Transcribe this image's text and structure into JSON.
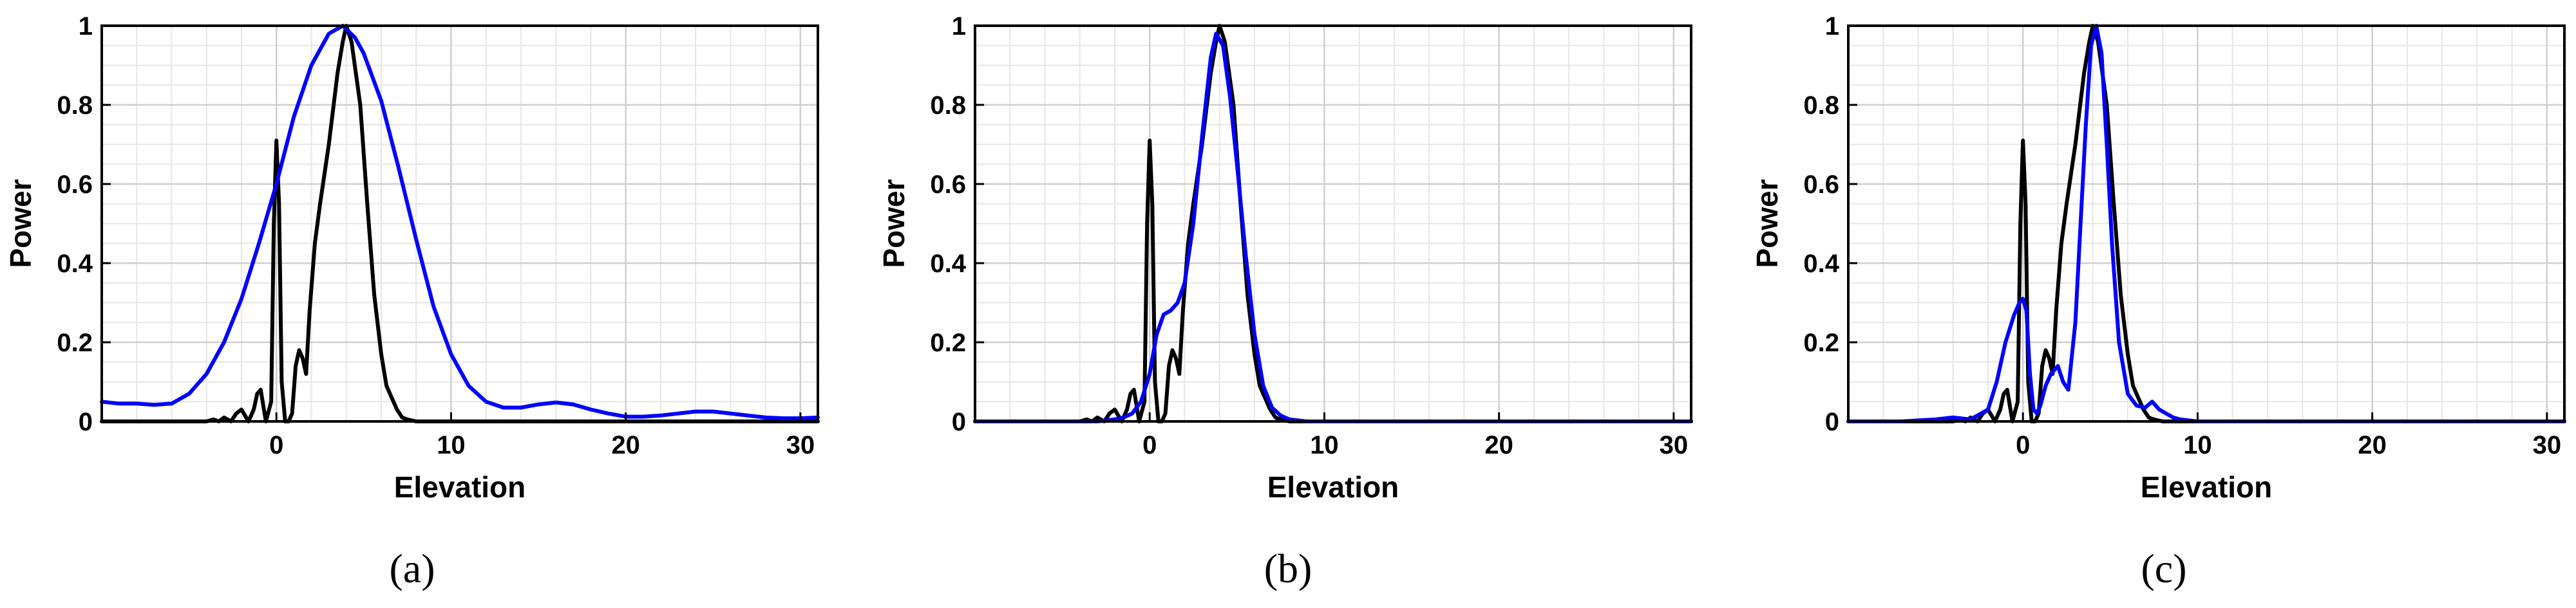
{
  "colors": {
    "reference": "#000000",
    "estimate": "#0000ff",
    "grid": "#cfcfcf",
    "minor_grid": "#e6e6e6"
  },
  "chart_data": [
    {
      "type": "line",
      "caption": "(a)",
      "xlabel": "Elevation",
      "ylabel": "Power",
      "xlim": [
        -10,
        31
      ],
      "ylim": [
        0,
        1
      ],
      "xticks": [
        0,
        10,
        20,
        30
      ],
      "xtick_labels": [
        "0",
        "10",
        "20",
        "30"
      ],
      "yticks": [
        0,
        0.2,
        0.4,
        0.6,
        0.8,
        1
      ],
      "ytick_labels": [
        "0",
        "0.2",
        "0.4",
        "0.6",
        "0.8",
        "1"
      ],
      "grid": true,
      "series": [
        {
          "color": "#000000",
          "x": [
            -10,
            -5,
            -4,
            -3.6,
            -3.3,
            -3,
            -2.6,
            -2.3,
            -2,
            -1.6,
            -1.3,
            -1.1,
            -0.9,
            -0.6,
            -0.3,
            -0.15,
            0,
            0.15,
            0.3,
            0.5,
            0.7,
            0.9,
            1.1,
            1.3,
            1.5,
            1.7,
            1.9,
            2.2,
            2.5,
            3,
            3.5,
            3.8,
            4,
            4.3,
            4.8,
            5.2,
            5.6,
            6,
            6.3,
            6.6,
            6.9,
            7.2,
            7.5,
            8,
            9,
            10,
            12,
            15,
            20,
            25,
            31
          ],
          "y": [
            0,
            0,
            0,
            0.005,
            0,
            0.01,
            0,
            0.02,
            0.03,
            0,
            0.03,
            0.07,
            0.08,
            0,
            0.05,
            0.5,
            0.71,
            0.55,
            0.1,
            0,
            0,
            0.02,
            0.14,
            0.18,
            0.16,
            0.12,
            0.28,
            0.45,
            0.55,
            0.7,
            0.88,
            0.96,
            1,
            0.96,
            0.8,
            0.55,
            0.32,
            0.17,
            0.09,
            0.06,
            0.03,
            0.01,
            0.005,
            0,
            0,
            0,
            0,
            0,
            0,
            0,
            0
          ]
        },
        {
          "color": "#0000ff",
          "x": [
            -10,
            -9,
            -8,
            -7,
            -6,
            -5,
            -4,
            -3,
            -2,
            -1,
            0,
            1,
            2,
            3,
            3.8,
            4.5,
            5,
            6,
            7,
            8,
            9,
            10,
            11,
            12,
            13,
            14,
            15,
            16,
            17,
            18,
            19,
            20,
            21,
            22,
            23,
            24,
            25,
            26,
            27,
            28,
            29,
            30,
            31
          ],
          "y": [
            0.05,
            0.045,
            0.045,
            0.042,
            0.045,
            0.07,
            0.12,
            0.2,
            0.31,
            0.45,
            0.6,
            0.77,
            0.9,
            0.98,
            1,
            0.97,
            0.93,
            0.81,
            0.64,
            0.46,
            0.29,
            0.17,
            0.09,
            0.05,
            0.035,
            0.035,
            0.043,
            0.048,
            0.043,
            0.03,
            0.02,
            0.012,
            0.012,
            0.015,
            0.02,
            0.025,
            0.025,
            0.02,
            0.015,
            0.01,
            0.008,
            0.008,
            0.01
          ]
        }
      ]
    },
    {
      "type": "line",
      "caption": "(b)",
      "xlabel": "Elevation",
      "ylabel": "Power",
      "xlim": [
        -10,
        31
      ],
      "ylim": [
        0,
        1
      ],
      "xticks": [
        0,
        10,
        20,
        30
      ],
      "xtick_labels": [
        "0",
        "10",
        "20",
        "30"
      ],
      "yticks": [
        0,
        0.2,
        0.4,
        0.6,
        0.8,
        1
      ],
      "ytick_labels": [
        "0",
        "0.2",
        "0.4",
        "0.6",
        "0.8",
        "1"
      ],
      "grid": true,
      "series": [
        {
          "color": "#000000",
          "x": [
            -10,
            -5,
            -4,
            -3.6,
            -3.3,
            -3,
            -2.6,
            -2.3,
            -2,
            -1.6,
            -1.3,
            -1.1,
            -0.9,
            -0.6,
            -0.3,
            -0.15,
            0,
            0.15,
            0.3,
            0.5,
            0.7,
            0.9,
            1.1,
            1.3,
            1.5,
            1.7,
            1.9,
            2.2,
            2.5,
            3,
            3.5,
            3.8,
            4,
            4.3,
            4.8,
            5.2,
            5.6,
            6,
            6.3,
            6.6,
            6.9,
            7.2,
            7.5,
            8,
            9,
            10,
            12,
            15,
            20,
            25,
            31
          ],
          "y": [
            0,
            0,
            0,
            0.005,
            0,
            0.01,
            0,
            0.02,
            0.03,
            0,
            0.03,
            0.07,
            0.08,
            0,
            0.05,
            0.5,
            0.71,
            0.55,
            0.1,
            0,
            0,
            0.02,
            0.14,
            0.18,
            0.16,
            0.12,
            0.28,
            0.45,
            0.55,
            0.7,
            0.88,
            0.96,
            1,
            0.96,
            0.8,
            0.55,
            0.32,
            0.17,
            0.09,
            0.06,
            0.03,
            0.01,
            0.005,
            0,
            0,
            0,
            0,
            0,
            0,
            0,
            0
          ]
        },
        {
          "color": "#0000ff",
          "x": [
            -10,
            -3,
            -2,
            -1.5,
            -1,
            -0.5,
            0,
            0.4,
            0.8,
            1.2,
            1.6,
            2,
            2.5,
            3,
            3.5,
            3.8,
            4.2,
            4.6,
            5,
            5.5,
            6,
            6.5,
            7,
            7.5,
            8,
            9,
            10,
            15,
            20,
            25,
            31
          ],
          "y": [
            0,
            0,
            0.005,
            0.01,
            0.02,
            0.05,
            0.12,
            0.22,
            0.27,
            0.28,
            0.3,
            0.35,
            0.5,
            0.72,
            0.92,
            0.98,
            0.95,
            0.82,
            0.65,
            0.42,
            0.22,
            0.09,
            0.035,
            0.015,
            0.005,
            0,
            0,
            0,
            0,
            0,
            0
          ]
        }
      ]
    },
    {
      "type": "line",
      "caption": "(c)",
      "xlabel": "Elevation",
      "ylabel": "Power",
      "xlim": [
        -10,
        31
      ],
      "ylim": [
        0,
        1
      ],
      "xticks": [
        0,
        10,
        20,
        30
      ],
      "xtick_labels": [
        "0",
        "10",
        "20",
        "30"
      ],
      "yticks": [
        0,
        0.2,
        0.4,
        0.6,
        0.8,
        1
      ],
      "ytick_labels": [
        "0",
        "0.2",
        "0.4",
        "0.6",
        "0.8",
        "1"
      ],
      "grid": true,
      "series": [
        {
          "color": "#000000",
          "x": [
            -10,
            -5,
            -4,
            -3.6,
            -3.3,
            -3,
            -2.6,
            -2.3,
            -2,
            -1.6,
            -1.3,
            -1.1,
            -0.9,
            -0.6,
            -0.3,
            -0.15,
            0,
            0.15,
            0.3,
            0.5,
            0.7,
            0.9,
            1.1,
            1.3,
            1.5,
            1.7,
            1.9,
            2.2,
            2.5,
            3,
            3.5,
            3.8,
            4,
            4.3,
            4.8,
            5.2,
            5.6,
            6,
            6.3,
            6.6,
            6.9,
            7.2,
            7.5,
            8,
            9,
            10,
            12,
            15,
            20,
            25,
            31
          ],
          "y": [
            0,
            0,
            0,
            0.005,
            0,
            0.01,
            0,
            0.02,
            0.03,
            0,
            0.03,
            0.07,
            0.08,
            0,
            0.05,
            0.5,
            0.71,
            0.55,
            0.1,
            0,
            0,
            0.02,
            0.14,
            0.18,
            0.16,
            0.12,
            0.28,
            0.45,
            0.55,
            0.7,
            0.88,
            0.96,
            1,
            0.96,
            0.8,
            0.55,
            0.32,
            0.17,
            0.09,
            0.06,
            0.03,
            0.01,
            0.005,
            0,
            0,
            0,
            0,
            0,
            0,
            0,
            0
          ]
        },
        {
          "color": "#0000ff",
          "x": [
            -10,
            -7,
            -5,
            -4,
            -3,
            -2,
            -1.5,
            -1,
            -0.5,
            -0.2,
            0,
            0.2,
            0.4,
            0.6,
            0.8,
            1,
            1.3,
            1.6,
            2,
            2.3,
            2.6,
            3,
            3.3,
            3.6,
            3.9,
            4.2,
            4.5,
            4.8,
            5.1,
            5.5,
            6,
            6.5,
            7,
            7.4,
            7.8,
            8.2,
            8.6,
            9,
            10,
            15,
            20,
            25,
            31
          ],
          "y": [
            0,
            0,
            0.005,
            0.01,
            0.005,
            0.03,
            0.1,
            0.2,
            0.27,
            0.3,
            0.31,
            0.28,
            0.12,
            0.03,
            0.02,
            0.04,
            0.09,
            0.12,
            0.14,
            0.1,
            0.08,
            0.25,
            0.5,
            0.75,
            0.95,
            1,
            0.93,
            0.7,
            0.45,
            0.2,
            0.07,
            0.04,
            0.035,
            0.05,
            0.03,
            0.02,
            0.01,
            0.005,
            0,
            0,
            0,
            0,
            0
          ]
        }
      ]
    }
  ]
}
